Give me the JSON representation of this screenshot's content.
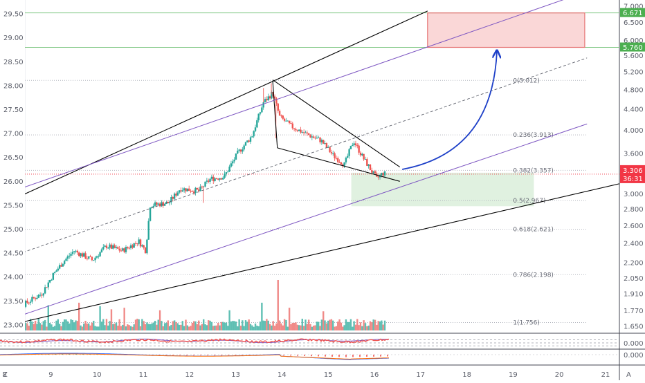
{
  "chart_data": {
    "type": "candlestick",
    "title": "",
    "colors": {
      "up": "#26a69a",
      "down": "#ef5350",
      "up_volume": "#5fbfb3",
      "down_volume": "#f08a88",
      "channel": "#7e57c2",
      "trendline": "#000000",
      "arrow": "#1e40c8",
      "target_box": "#f28b8b",
      "support_box": "#a5d6a7",
      "price_tag": "#f23645",
      "level_tag": "#4caf50",
      "fib_line": "#b2b5be",
      "macd_line": "#2962ff",
      "signal_line": "#ff6d00"
    },
    "price_axis_left": {
      "ticks": [
        "29.50",
        "29.00",
        "28.50",
        "28.00",
        "27.50",
        "27.00",
        "26.50",
        "26.00",
        "25.50",
        "25.00",
        "24.50",
        "24.00",
        "23.50",
        "23.00"
      ],
      "values": [
        29.5,
        29.0,
        28.5,
        28.0,
        27.5,
        27.0,
        26.5,
        26.0,
        25.5,
        25.0,
        24.5,
        24.0,
        23.5,
        23.0
      ],
      "ylim": [
        22.84,
        29.79
      ]
    },
    "price_axis_right": {
      "ticks": [
        "7.000",
        "6.500",
        "6.000",
        "5.600",
        "5.200",
        "4.800",
        "4.400",
        "4.000",
        "3.600",
        "3.000",
        "2.800",
        "2.600",
        "2.400",
        "2.200",
        "2.050",
        "1.910",
        "1.770",
        "1.650"
      ],
      "scale": "log",
      "tick_values": [
        7.0,
        6.5,
        6.0,
        5.6,
        5.2,
        4.8,
        4.4,
        4.0,
        3.6,
        3.0,
        2.8,
        2.6,
        2.4,
        2.2,
        2.05,
        1.91,
        1.77,
        1.65
      ]
    },
    "x_axis": {
      "ticks": [
        "8",
        "9",
        "10",
        "11",
        "12",
        "13",
        "14",
        "15",
        "16",
        "17",
        "18",
        "19",
        "20",
        "21"
      ],
      "day_values": [
        8,
        9,
        10,
        11,
        12,
        13,
        14,
        15,
        16,
        17,
        18,
        19,
        20,
        21
      ],
      "xlim": [
        7.9,
        21.3
      ],
      "corner_left": "Z",
      "corner_right": "A"
    },
    "price_path": [
      [
        7.9,
        23.38
      ],
      [
        8.4,
        23.42
      ],
      [
        8.8,
        23.65
      ],
      [
        9.05,
        24.05
      ],
      [
        9.25,
        24.3
      ],
      [
        9.5,
        24.55
      ],
      [
        9.9,
        24.35
      ],
      [
        10.2,
        24.65
      ],
      [
        10.55,
        24.55
      ],
      [
        10.9,
        24.75
      ],
      [
        11.05,
        24.55
      ],
      [
        11.15,
        25.5
      ],
      [
        11.55,
        25.55
      ],
      [
        11.8,
        25.85
      ],
      [
        12.2,
        25.8
      ],
      [
        12.45,
        26.05
      ],
      [
        12.75,
        26.1
      ],
      [
        13.05,
        26.6
      ],
      [
        13.35,
        26.95
      ],
      [
        13.6,
        27.65
      ],
      [
        13.8,
        27.85
      ],
      [
        13.95,
        27.35
      ],
      [
        14.2,
        27.15
      ],
      [
        14.5,
        27.0
      ],
      [
        14.85,
        26.85
      ],
      [
        15.1,
        26.55
      ],
      [
        15.35,
        26.35
      ],
      [
        15.55,
        26.85
      ],
      [
        15.75,
        26.5
      ],
      [
        15.95,
        26.2
      ],
      [
        16.05,
        26.05
      ],
      [
        16.18,
        26.17
      ],
      [
        16.26,
        26.15
      ]
    ],
    "spikes": [
      [
        13.6,
        27.95
      ],
      [
        13.77,
        28.05
      ],
      [
        13.87,
        26.9
      ],
      [
        12.3,
        25.55
      ]
    ],
    "volume": {
      "base_height": 0.18,
      "spikes": [
        {
          "day": 9.6,
          "height": 0.55
        },
        {
          "day": 10.05,
          "height": 0.48
        },
        {
          "day": 10.6,
          "height": 0.45
        },
        {
          "day": 12.85,
          "height": 0.4
        },
        {
          "day": 13.9,
          "height": 1.0
        },
        {
          "day": 14.15,
          "height": 0.45
        },
        {
          "day": 13.55,
          "height": 0.55
        },
        {
          "day": 14.9,
          "height": 0.38
        },
        {
          "day": 10.3,
          "height": 0.42
        },
        {
          "day": 11.35,
          "height": 0.4
        },
        {
          "day": 8.95,
          "height": 0.5
        }
      ]
    },
    "horizontal_levels": [
      {
        "price": 29.52,
        "label": "6.671"
      },
      {
        "price": 28.8,
        "label": "5.760"
      }
    ],
    "current_price": {
      "price": 26.15,
      "label": "3.306",
      "countdown": "36:31"
    },
    "fibonacci": [
      {
        "price": 28.11,
        "label": "0(5.012)"
      },
      {
        "price": 26.97,
        "label": "0.236(3.913)"
      },
      {
        "price": 26.23,
        "label": "0.382(3.357)"
      },
      {
        "price": 25.6,
        "label": "0.5(2.967)"
      },
      {
        "price": 25.0,
        "label": "0.618(2.621)"
      },
      {
        "price": 24.05,
        "label": "0.786(2.198)"
      },
      {
        "price": 23.05,
        "label": "1(1.756)"
      }
    ],
    "fib_range": [
      7.9,
      20.6
    ],
    "fib_label_x": 19.0,
    "zones": [
      {
        "type": "target",
        "x": [
          17.15,
          20.55
        ],
        "price": [
          28.8,
          29.52
        ]
      },
      {
        "type": "support",
        "x": [
          15.5,
          19.45
        ],
        "price": [
          25.48,
          26.18
        ]
      }
    ],
    "lines": [
      {
        "kind": "trendline",
        "from": [
          7.9,
          25.5
        ],
        "to": [
          17.15,
          29.56
        ]
      },
      {
        "kind": "trendline",
        "from": [
          7.9,
          22.95
        ],
        "to": [
          21.3,
          25.95
        ]
      },
      {
        "kind": "trendline",
        "from": [
          13.8,
          28.12
        ],
        "to": [
          16.55,
          26.3
        ]
      },
      {
        "kind": "trendline",
        "from": [
          13.8,
          28.1
        ],
        "to": [
          13.9,
          26.7
        ]
      },
      {
        "kind": "trendline",
        "from": [
          13.9,
          26.7
        ],
        "to": [
          16.55,
          26.0
        ]
      },
      {
        "kind": "channel",
        "from": [
          7.9,
          25.7
        ],
        "to": [
          20.1,
          29.8
        ]
      },
      {
        "kind": "channel",
        "from": [
          7.9,
          23.05
        ],
        "to": [
          20.6,
          27.2
        ]
      },
      {
        "kind": "channel_mid",
        "from": [
          7.9,
          24.35
        ],
        "to": [
          20.6,
          28.58
        ]
      }
    ],
    "arrow": {
      "from": [
        16.6,
        26.25
      ],
      "control": [
        18.55,
        26.6
      ],
      "to": [
        18.65,
        28.72
      ]
    },
    "indicator_1": {
      "levels": [
        0.4,
        0.62,
        0.82
      ],
      "tick": "0.000"
    },
    "indicator_2": {
      "tick": "0.000"
    }
  }
}
